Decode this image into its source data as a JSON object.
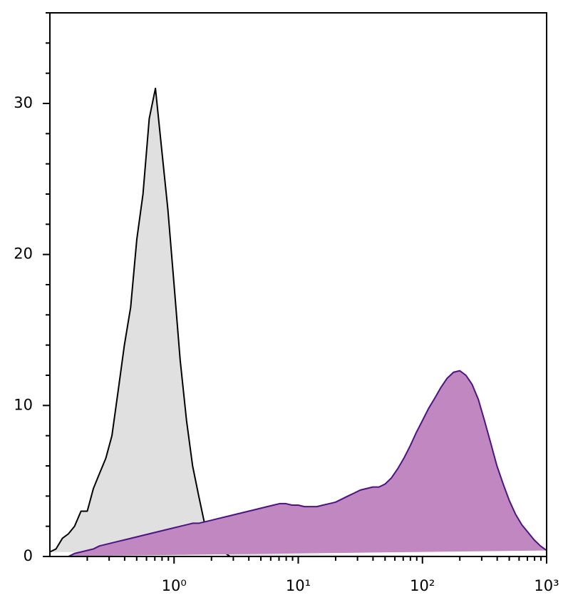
{
  "chart_data": {
    "type": "histogram-overlay",
    "x": [
      0.1,
      0.112,
      0.126,
      0.141,
      0.158,
      0.178,
      0.2,
      0.224,
      0.251,
      0.282,
      0.316,
      0.355,
      0.398,
      0.447,
      0.501,
      0.562,
      0.631,
      0.708,
      0.794,
      0.891,
      1,
      1.12,
      1.26,
      1.41,
      1.58,
      1.78,
      2,
      2.24,
      2.51,
      2.82,
      3.16,
      3.55,
      3.98,
      4.47,
      5.01,
      5.62,
      6.31,
      7.08,
      7.94,
      8.91,
      10,
      11.2,
      12.6,
      14.1,
      15.8,
      17.8,
      20,
      22.4,
      25.1,
      28.2,
      31.6,
      35.5,
      39.8,
      44.7,
      50.1,
      56.2,
      63.1,
      70.8,
      79.4,
      89.1,
      100,
      112,
      126,
      141,
      158,
      178,
      200,
      224,
      251,
      282,
      316,
      355,
      398,
      447,
      501,
      562,
      631,
      708,
      794,
      891,
      1000
    ],
    "series": [
      {
        "color": "#000000",
        "fill": "#e0e0e0",
        "values": [
          0.3,
          0.5,
          1.2,
          1.5,
          2,
          3,
          3,
          4.5,
          5.5,
          6.5,
          8,
          11,
          14,
          16.5,
          21,
          24,
          29,
          31,
          27,
          23,
          18,
          13,
          9,
          6,
          4,
          2,
          1,
          0.5,
          0.3,
          0,
          0,
          0,
          0,
          0,
          0,
          0,
          0,
          0,
          0,
          0,
          0,
          0,
          0,
          0,
          0,
          0,
          0,
          0,
          0,
          0,
          0,
          0,
          0,
          0,
          0,
          0,
          0,
          0,
          0,
          0,
          0,
          0,
          0,
          0,
          0,
          0,
          0,
          0,
          0,
          0,
          0,
          0,
          0,
          0,
          0,
          0,
          0,
          0,
          0,
          0,
          0
        ]
      },
      {
        "color": "#4b1580",
        "fill": "#c087c0",
        "values": [
          0,
          0,
          0,
          0,
          0.2,
          0.3,
          0.4,
          0.5,
          0.7,
          0.8,
          0.9,
          1,
          1.1,
          1.2,
          1.3,
          1.4,
          1.5,
          1.6,
          1.7,
          1.8,
          1.9,
          2,
          2.1,
          2.2,
          2.2,
          2.3,
          2.4,
          2.5,
          2.6,
          2.7,
          2.8,
          2.9,
          3,
          3.1,
          3.2,
          3.3,
          3.4,
          3.5,
          3.5,
          3.4,
          3.4,
          3.3,
          3.3,
          3.3,
          3.4,
          3.5,
          3.6,
          3.8,
          4,
          4.2,
          4.4,
          4.5,
          4.6,
          4.6,
          4.8,
          5.2,
          5.8,
          6.5,
          7.3,
          8.2,
          9,
          9.8,
          10.5,
          11.2,
          11.8,
          12.2,
          12.3,
          12,
          11.4,
          10.4,
          9,
          7.5,
          6,
          4.8,
          3.7,
          2.8,
          2.1,
          1.6,
          1.1,
          0.7,
          0.4
        ]
      }
    ],
    "xscale": "log",
    "xlim": [
      0.1,
      1000
    ],
    "xticks": [
      {
        "value": 1,
        "label": "10⁰"
      },
      {
        "value": 10,
        "label": "10¹"
      },
      {
        "value": 100,
        "label": "10²"
      },
      {
        "value": 1000,
        "label": "10³"
      }
    ],
    "xticks_minor": [
      0.2,
      0.3,
      0.4,
      0.5,
      0.6,
      0.7,
      0.8,
      0.9,
      2,
      3,
      4,
      5,
      6,
      7,
      8,
      9,
      20,
      30,
      40,
      50,
      60,
      70,
      80,
      90,
      200,
      300,
      400,
      500,
      600,
      700,
      800,
      900
    ],
    "ylim": [
      0,
      36
    ],
    "yticks": [
      0,
      10,
      20,
      30
    ],
    "yticks_minor": [
      2,
      4,
      6,
      8,
      12,
      14,
      16,
      18,
      22,
      24,
      26,
      28,
      32,
      34,
      36
    ]
  }
}
